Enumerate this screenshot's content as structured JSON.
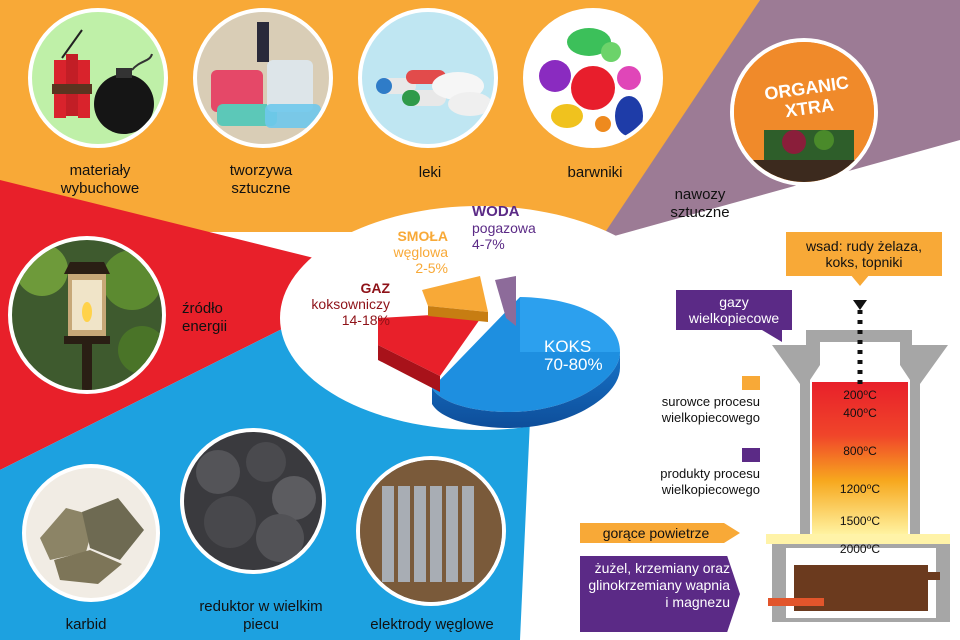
{
  "products": {
    "explosives": "materiały wybuchowe",
    "plastics": "tworzywa sztuczne",
    "medicines": "leki",
    "dyes": "barwniki",
    "fertilizers": "nawozy sztuczne",
    "energy": "źródło energii",
    "carbide": "karbid",
    "reducer": "reduktor w wielkim piecu",
    "electrodes": "elektrody węglowe"
  },
  "fertilizer_bag_text": "ORGANIC XTRA",
  "pie": {
    "koks": {
      "name": "KOKS",
      "range": "70-80%"
    },
    "gaz": {
      "name": "GAZ",
      "sub": "koksowniczy",
      "range": "14-18%"
    },
    "smola": {
      "name": "SMOŁA",
      "sub": "węglowa",
      "range": "2-5%"
    },
    "woda": {
      "name": "WODA",
      "sub": "pogazowa",
      "range": "4-7%"
    }
  },
  "furnace": {
    "charge": "wsad: rudy żelaza, koks, topniki",
    "gases": "gazy wielkopiecowe",
    "legend_raw": "surowce procesu wielkopiecowego",
    "legend_products": "produkty procesu wielkopiecowego",
    "hot_air": "gorące powietrze",
    "slag": "żużel, krzemiany oraz glinokrzemiany wapnia i magnezu",
    "temps": [
      "200⁰C",
      "400⁰C",
      "800⁰C",
      "1200⁰C",
      "1500⁰C",
      "2000⁰C"
    ]
  },
  "colors": {
    "orange": "#F8A937",
    "purple": "#5B2A86",
    "red": "#E8202A",
    "blue": "#1DA1E0",
    "mauve": "#9C7B95"
  }
}
